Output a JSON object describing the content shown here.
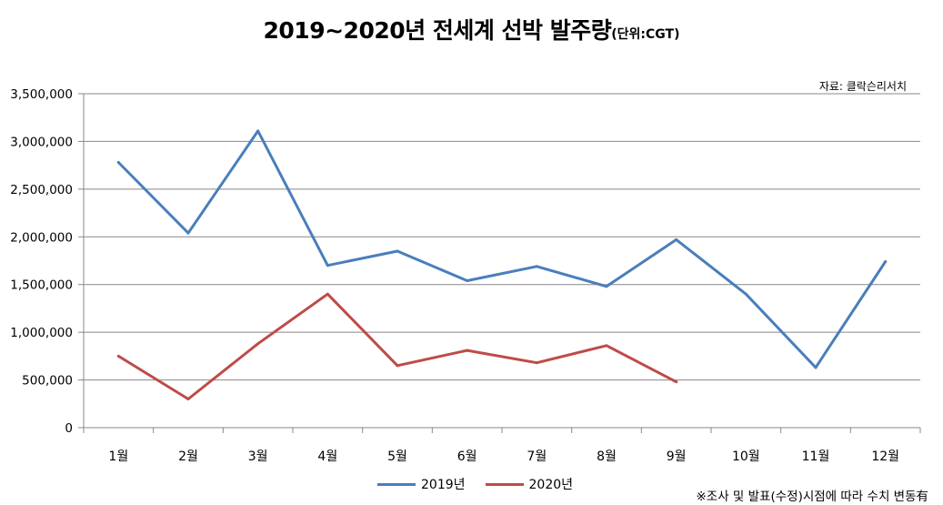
{
  "title": {
    "main": "2019~2020년 전세계 선박 발주량",
    "unit": "(단위:CGT)"
  },
  "source": "자료: 클락슨리서치",
  "note": "※조사 및 발표(수정)시점에 따라 수치 변동有",
  "colors": {
    "series_2019": "#4a7ebb",
    "series_2020": "#be4b48",
    "grid": "#888888",
    "axis": "#888888"
  },
  "chart_data": {
    "type": "line",
    "title": "2019~2020년 전세계 선박 발주량",
    "xlabel": "",
    "ylabel": "",
    "categories": [
      "1월",
      "2월",
      "3월",
      "4월",
      "5월",
      "6월",
      "7월",
      "8월",
      "9월",
      "10월",
      "11월",
      "12월"
    ],
    "ylim": [
      0,
      3500000
    ],
    "yticks": [
      0,
      500000,
      1000000,
      1500000,
      2000000,
      2500000,
      3000000,
      3500000
    ],
    "ytick_labels": [
      "0",
      "500,000",
      "1,000,000",
      "1,500,000",
      "2,000,000",
      "2,500,000",
      "3,000,000",
      "3,500,000"
    ],
    "grid": true,
    "legend_position": "bottom",
    "series": [
      {
        "name": "2019년",
        "color": "#4a7ebb",
        "values": [
          2780000,
          2040000,
          3110000,
          1700000,
          1850000,
          1540000,
          1690000,
          1480000,
          1970000,
          1400000,
          630000,
          1740000
        ]
      },
      {
        "name": "2020년",
        "color": "#be4b48",
        "values": [
          750000,
          300000,
          880000,
          1400000,
          650000,
          810000,
          680000,
          860000,
          480000,
          null,
          null,
          null
        ]
      }
    ]
  }
}
